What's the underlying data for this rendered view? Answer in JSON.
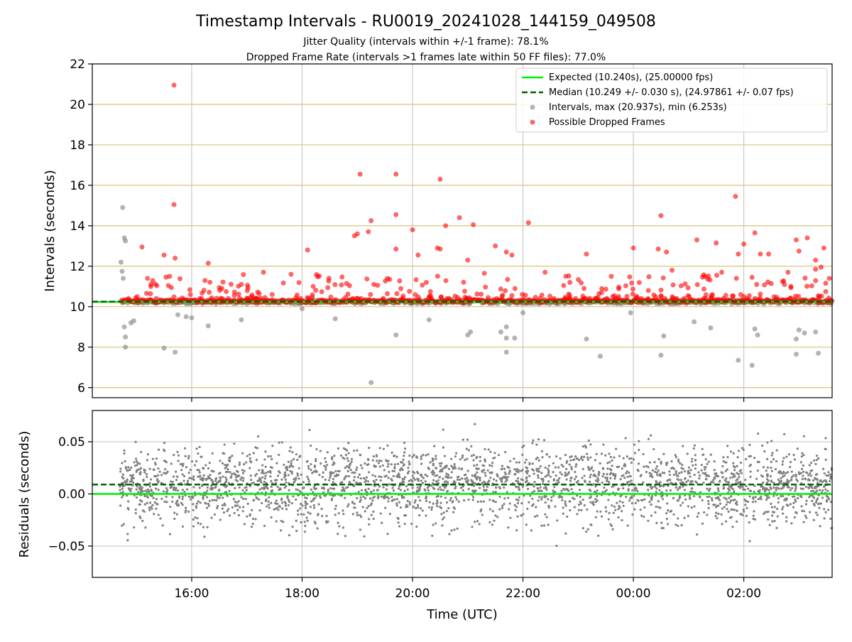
{
  "title": "Timestamp Intervals - RU0019_20241028_144159_049508",
  "subtitle_1": "Jitter Quality (intervals within +/-1 frame): 78.1%",
  "subtitle_2": "Dropped Frame Rate (intervals >1 frames late within 50 FF files): 77.0%",
  "colors": {
    "expected": "#00ee00",
    "median": "#006400",
    "intervals": "#808080",
    "dropped": "#ff0000",
    "ygrid_top": "#d4c47a",
    "grid": "#c8c8c8"
  },
  "chart_data": [
    {
      "type": "scatter",
      "name": "intervals-panel",
      "ylabel": "Intervals (seconds)",
      "ylim": [
        5.5,
        22
      ],
      "yticks": [
        6,
        8,
        10,
        12,
        14,
        16,
        18,
        20,
        22
      ],
      "ytick_labels": [
        "6",
        "8",
        "10",
        "12",
        "14",
        "16",
        "18",
        "20",
        "22"
      ],
      "xlim_hours": [
        14.2,
        27.6
      ],
      "xticks_hours": [
        16,
        18,
        20,
        22,
        24,
        26
      ],
      "grid": "on",
      "legend_position": "upper right",
      "expected": 10.24,
      "median": 10.249,
      "legend": [
        "Expected (10.240s), (25.00000 fps)",
        "Median (10.249 +/- 0.030 s), (24.97861 +/- 0.07 fps)",
        "Intervals, max (20.937s), min (6.253s)",
        "Possible Dropped Frames"
      ],
      "outliers_gray": [
        [
          14.75,
          14.9
        ],
        [
          14.78,
          13.4
        ],
        [
          14.8,
          13.25
        ],
        [
          14.72,
          12.2
        ],
        [
          14.74,
          11.75
        ],
        [
          14.76,
          11.4
        ],
        [
          14.78,
          9.0
        ],
        [
          14.8,
          8.5
        ],
        [
          14.8,
          8.0
        ],
        [
          14.9,
          9.2
        ],
        [
          14.95,
          9.3
        ],
        [
          15.5,
          7.95
        ],
        [
          15.7,
          7.75
        ],
        [
          15.75,
          9.6
        ],
        [
          15.9,
          9.5
        ],
        [
          16.0,
          9.45
        ],
        [
          16.3,
          9.05
        ],
        [
          16.9,
          9.35
        ],
        [
          18.0,
          9.9
        ],
        [
          18.6,
          9.4
        ],
        [
          19.25,
          6.25
        ],
        [
          19.7,
          8.6
        ],
        [
          20.3,
          9.35
        ],
        [
          21.0,
          8.6
        ],
        [
          21.05,
          8.75
        ],
        [
          21.6,
          8.75
        ],
        [
          21.7,
          9.0
        ],
        [
          21.7,
          7.75
        ],
        [
          21.7,
          8.45
        ],
        [
          21.85,
          8.45
        ],
        [
          22.0,
          9.7
        ],
        [
          23.15,
          8.4
        ],
        [
          23.4,
          7.55
        ],
        [
          23.95,
          9.7
        ],
        [
          24.5,
          7.6
        ],
        [
          24.55,
          8.55
        ],
        [
          25.1,
          9.25
        ],
        [
          25.4,
          8.95
        ],
        [
          25.9,
          7.35
        ],
        [
          26.15,
          7.1
        ],
        [
          26.2,
          8.9
        ],
        [
          26.25,
          8.6
        ],
        [
          26.95,
          8.4
        ],
        [
          26.95,
          7.65
        ],
        [
          27.0,
          8.85
        ],
        [
          27.1,
          8.7
        ],
        [
          27.3,
          8.75
        ],
        [
          27.35,
          7.7
        ]
      ],
      "outliers_red": [
        [
          15.68,
          20.95
        ],
        [
          15.68,
          15.05
        ],
        [
          19.05,
          16.55
        ],
        [
          19.7,
          16.55
        ],
        [
          20.5,
          16.3
        ],
        [
          25.85,
          15.45
        ],
        [
          19.7,
          14.55
        ],
        [
          20.6,
          14.0
        ],
        [
          20.85,
          14.4
        ],
        [
          21.1,
          14.05
        ],
        [
          22.1,
          14.15
        ],
        [
          24.5,
          14.5
        ],
        [
          19.25,
          14.25
        ],
        [
          18.95,
          13.5
        ],
        [
          19.0,
          13.6
        ],
        [
          19.2,
          13.7
        ],
        [
          20.0,
          13.8
        ],
        [
          21.5,
          13.0
        ],
        [
          25.15,
          13.3
        ],
        [
          25.5,
          13.15
        ],
        [
          26.2,
          13.65
        ],
        [
          26.0,
          13.1
        ],
        [
          26.95,
          13.3
        ],
        [
          27.15,
          13.4
        ],
        [
          27.45,
          12.9
        ],
        [
          15.1,
          12.95
        ],
        [
          15.5,
          12.55
        ],
        [
          15.7,
          12.4
        ],
        [
          16.3,
          12.15
        ],
        [
          18.1,
          12.8
        ],
        [
          19.7,
          12.85
        ],
        [
          20.1,
          12.55
        ],
        [
          20.45,
          12.9
        ],
        [
          20.5,
          12.85
        ],
        [
          21.0,
          12.3
        ],
        [
          21.8,
          12.55
        ],
        [
          21.7,
          12.7
        ],
        [
          23.15,
          12.6
        ],
        [
          24.0,
          12.9
        ],
        [
          24.45,
          12.85
        ],
        [
          24.6,
          12.7
        ],
        [
          25.9,
          12.6
        ],
        [
          26.3,
          12.6
        ],
        [
          26.45,
          12.6
        ],
        [
          27.0,
          12.75
        ],
        [
          27.3,
          12.3
        ],
        [
          15.2,
          11.4
        ],
        [
          15.6,
          11.5
        ],
        [
          16.9,
          11.1
        ],
        [
          17.3,
          11.7
        ],
        [
          17.8,
          11.6
        ],
        [
          18.2,
          11.0
        ],
        [
          19.3,
          11.1
        ],
        [
          20.25,
          11.2
        ],
        [
          21.3,
          11.65
        ],
        [
          22.4,
          11.7
        ],
        [
          22.85,
          11.2
        ],
        [
          23.6,
          11.5
        ],
        [
          24.7,
          11.8
        ],
        [
          25.3,
          11.5
        ],
        [
          25.6,
          11.7
        ],
        [
          26.15,
          11.45
        ],
        [
          26.8,
          11.7
        ],
        [
          27.3,
          11.85
        ],
        [
          27.55,
          11.4
        ],
        [
          27.4,
          11.95
        ]
      ],
      "scatter_band": {
        "center": 10.24,
        "spread": 0.1,
        "dropped_min": 10.2,
        "dropped_max": 10.35
      }
    },
    {
      "type": "scatter",
      "name": "residuals-panel",
      "ylabel": "Residuals (seconds)",
      "xlabel": "Time (UTC)",
      "ylim": [
        -0.08,
        0.08
      ],
      "yticks": [
        -0.05,
        0.0,
        0.05
      ],
      "ytick_labels": [
        "−0.05",
        "0.00",
        "0.05"
      ],
      "xlim_hours": [
        14.2,
        27.6
      ],
      "xticks_hours": [
        16,
        18,
        20,
        22,
        24,
        26
      ],
      "xtick_labels": [
        "16:00",
        "18:00",
        "20:00",
        "22:00",
        "00:00",
        "02:00"
      ],
      "grid": "on",
      "expected": 0.0,
      "median": 0.009,
      "data_start_hour": 14.7,
      "data_end_hour": 27.6
    }
  ]
}
